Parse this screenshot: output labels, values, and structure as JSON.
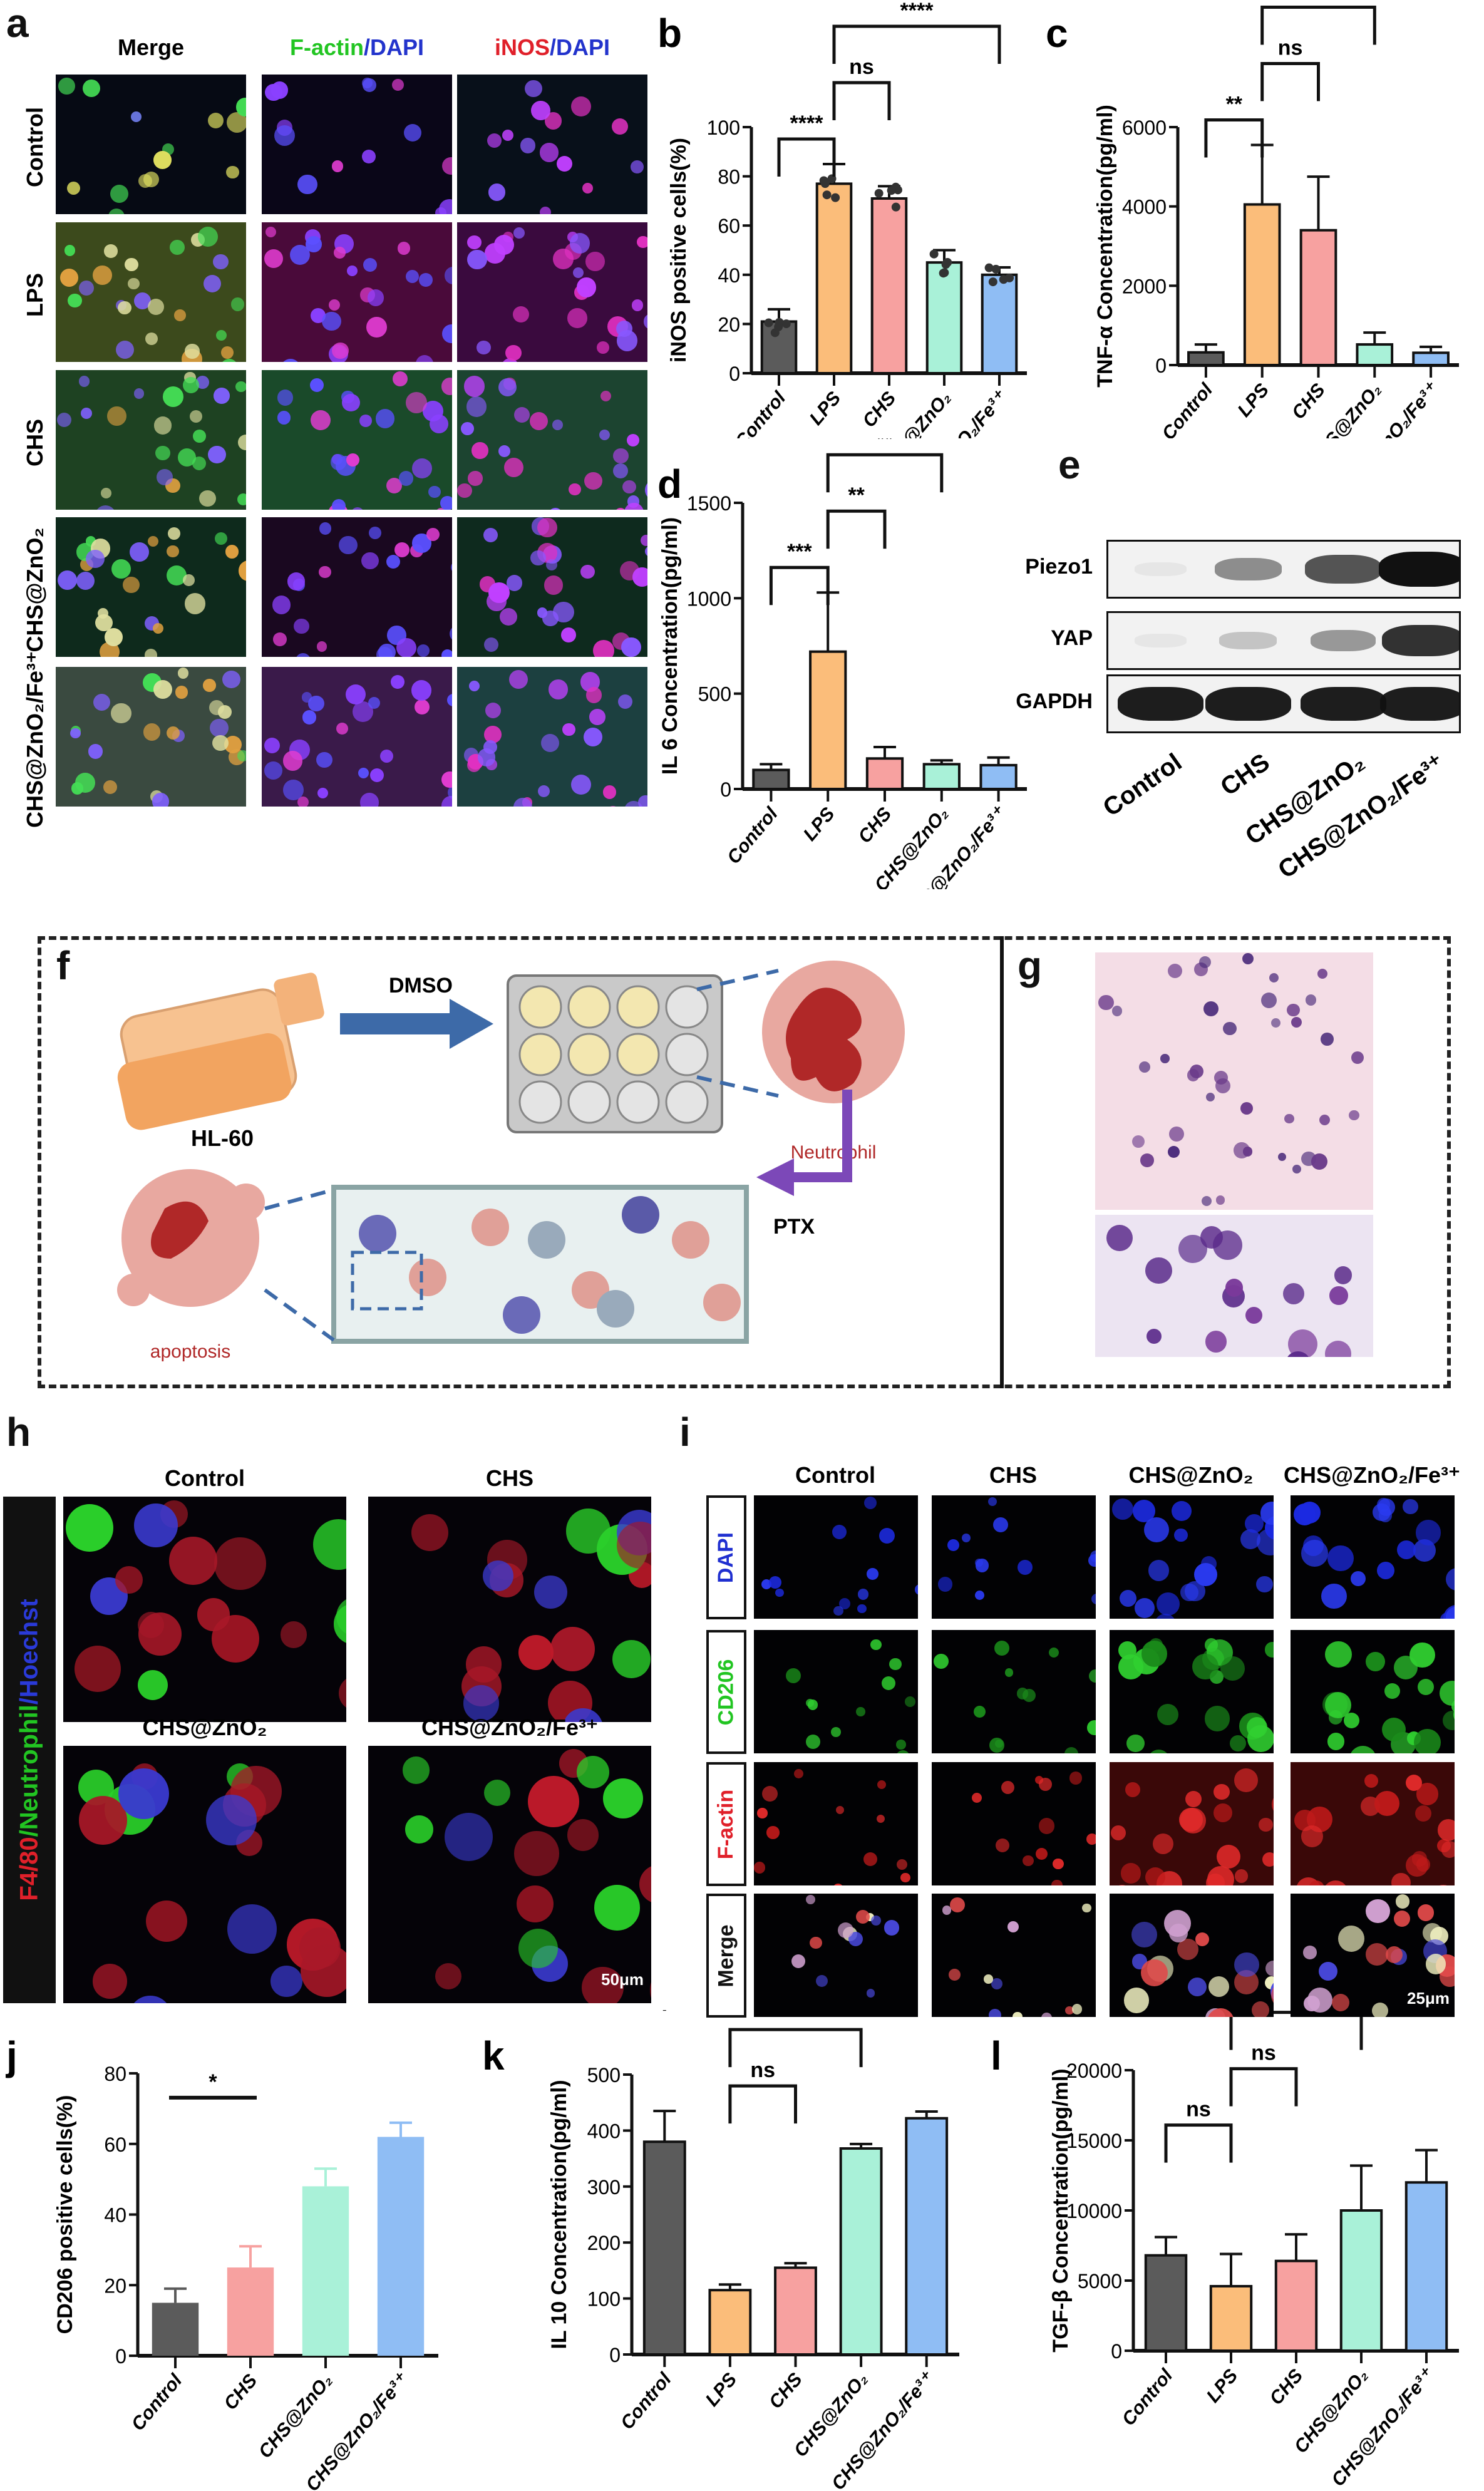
{
  "groups": {
    "control": "Control",
    "lps": "LPS",
    "chs": "CHS",
    "zno2": "CHS@ZnO₂",
    "fe": "CHS@ZnO₂/Fe³⁺"
  },
  "colors": {
    "Control": "#5b5b5b",
    "LPS": "#fbbd7a",
    "CHS": "#f7a1a0",
    "CHS@ZnO₂": "#a9f1d8",
    "CHS@ZnO₂/Fe³⁺": "#8fbdf4"
  },
  "panel_a": {
    "label": "a",
    "columns": [
      {
        "text": "Merge",
        "color": "#111111"
      },
      {
        "text1": "F-actin",
        "text2": "/DAPI",
        "c1": "#22c522",
        "c2": "#2233cc"
      },
      {
        "text1": "iNOS",
        "text2": "/DAPI",
        "c1": "#e0202a",
        "c2": "#2233cc"
      }
    ],
    "rows": [
      "Control",
      "LPS",
      "CHS",
      "CHS@ZnO₂",
      "CHS@ZnO₂/Fe³⁺"
    ]
  },
  "chart_data": [
    {
      "id": "b",
      "label": "b",
      "type": "bar",
      "ylabel": "iNOS positive cells(%)",
      "ylim": [
        0,
        100
      ],
      "yticks": [
        0,
        20,
        40,
        60,
        80,
        100
      ],
      "categories": [
        "Control",
        "LPS",
        "CHS",
        "CHS@ZnO₂",
        "CHS@ZnO₂/Fe³⁺"
      ],
      "values": [
        21,
        77,
        71,
        45,
        40
      ],
      "errors": [
        5,
        8,
        5,
        5,
        3
      ],
      "points": true,
      "significance": [
        {
          "from": 0,
          "to": 1,
          "text": "****"
        },
        {
          "from": 1,
          "to": 2,
          "text": "ns"
        },
        {
          "from": 1,
          "to": 4,
          "text": "****"
        }
      ]
    },
    {
      "id": "c",
      "label": "c",
      "type": "bar",
      "ylabel": "TNF-α Concentration(pg/ml)",
      "ylim": [
        0,
        6000
      ],
      "yticks": [
        0,
        2000,
        4000,
        6000
      ],
      "categories": [
        "Control",
        "LPS",
        "CHS",
        "CHS@ZnO₂",
        "CHS@ZnO₂/Fe³⁺"
      ],
      "values": [
        320,
        4050,
        3400,
        520,
        310
      ],
      "errors": [
        200,
        1500,
        1350,
        300,
        150
      ],
      "significance": [
        {
          "from": 0,
          "to": 1,
          "text": "**"
        },
        {
          "from": 1,
          "to": 2,
          "text": "ns"
        },
        {
          "from": 1,
          "to": 3,
          "text": "**"
        },
        {
          "from": 1,
          "to": 4,
          "text": "**"
        }
      ]
    },
    {
      "id": "d",
      "label": "d",
      "type": "bar",
      "ylabel": "IL 6 Concentration(pg/ml)",
      "ylim": [
        0,
        1500
      ],
      "yticks": [
        0,
        500,
        1000,
        1500
      ],
      "categories": [
        "Control",
        "LPS",
        "CHS",
        "CHS@ZnO₂",
        "CHS@ZnO₂/Fe³⁺"
      ],
      "values": [
        100,
        720,
        160,
        130,
        125
      ],
      "errors": [
        30,
        310,
        60,
        20,
        40
      ],
      "significance": [
        {
          "from": 0,
          "to": 1,
          "text": "***"
        },
        {
          "from": 1,
          "to": 2,
          "text": "**"
        },
        {
          "from": 1,
          "to": 3,
          "text": "**"
        },
        {
          "from": 1,
          "to": 4,
          "text": "**"
        }
      ]
    },
    {
      "id": "j",
      "label": "j",
      "type": "bar",
      "ylabel": "CD206 positive cells(%)",
      "ylim": [
        0,
        80
      ],
      "yticks": [
        0,
        20,
        40,
        60,
        80
      ],
      "categories": [
        "Control",
        "CHS",
        "CHS@ZnO₂",
        "CHS@ZnO₂/Fe³⁺"
      ],
      "values": [
        15,
        25,
        48,
        62
      ],
      "errors": [
        4,
        6,
        5,
        4
      ],
      "flat": true,
      "significance": [
        {
          "from": 0,
          "to": 1,
          "text": "*"
        },
        {
          "from": 0,
          "to": 2,
          "text": "****"
        },
        {
          "from": 0,
          "to": 3,
          "text": "****"
        }
      ]
    },
    {
      "id": "k",
      "label": "k",
      "type": "bar",
      "ylabel": "IL 10 Concentration(pg/ml)",
      "ylim": [
        0,
        500
      ],
      "yticks": [
        0,
        100,
        200,
        300,
        400,
        500
      ],
      "categories": [
        "Control",
        "LPS",
        "CHS",
        "CHS@ZnO₂",
        "CHS@ZnO₂/Fe³⁺"
      ],
      "values": [
        380,
        115,
        155,
        368,
        422
      ],
      "errors": [
        55,
        10,
        8,
        8,
        12
      ],
      "significance": [
        {
          "from": 1,
          "to": 2,
          "text": "ns"
        },
        {
          "from": 1,
          "to": 3,
          "text": "****"
        },
        {
          "from": 0,
          "to": 1,
          "text": "****"
        },
        {
          "from": 1,
          "to": 4,
          "text": "****"
        }
      ]
    },
    {
      "id": "l",
      "label": "l",
      "type": "bar",
      "ylabel": "TGF-β Concentration(pg/ml)",
      "ylim": [
        0,
        20000
      ],
      "yticks": [
        0,
        5000,
        10000,
        15000,
        20000
      ],
      "categories": [
        "Control",
        "LPS",
        "CHS",
        "CHS@ZnO₂",
        "CHS@ZnO₂/Fe³⁺"
      ],
      "values": [
        6800,
        4600,
        6400,
        10000,
        12000
      ],
      "errors": [
        1300,
        2300,
        1900,
        3200,
        2300
      ],
      "significance": [
        {
          "from": 0,
          "to": 1,
          "text": "ns"
        },
        {
          "from": 1,
          "to": 2,
          "text": "ns"
        },
        {
          "from": 1,
          "to": 3,
          "text": "*"
        },
        {
          "from": 1,
          "to": 4,
          "text": "**"
        }
      ]
    }
  ],
  "panel_e": {
    "label": "e",
    "rows": [
      {
        "name": "Piezo1",
        "levels": [
          0.05,
          0.45,
          0.7,
          1.0
        ]
      },
      {
        "name": "YAP",
        "levels": [
          0.05,
          0.2,
          0.4,
          0.85
        ]
      },
      {
        "name": "GAPDH",
        "levels": [
          0.95,
          0.95,
          0.95,
          0.95
        ]
      }
    ],
    "columns": [
      "Control",
      "CHS",
      "CHS@ZnO₂",
      "CHS@ZnO₂/Fe³⁺"
    ]
  },
  "panel_f": {
    "label": "f",
    "cell_line": "HL-60",
    "step1": "DMSO",
    "neutrophil": "Neutrophil",
    "step2": "PTX",
    "apoptosis": "apoptosis"
  },
  "panel_g": {
    "label": "g"
  },
  "panel_h": {
    "label": "h",
    "columns": [
      "Control",
      "CHS",
      "CHS@ZnO₂",
      "CHS@ZnO₂/Fe³⁺"
    ],
    "side1": "F4/80",
    "side2": "/Neutrophil",
    "side3": "/Hoechst",
    "scale": "50μm"
  },
  "panel_i": {
    "label": "i",
    "columns": [
      "Control",
      "CHS",
      "CHS@ZnO₂",
      "CHS@ZnO₂/Fe³⁺"
    ],
    "rows": [
      {
        "name": "DAPI",
        "color": "#1f2fd0"
      },
      {
        "name": "CD206",
        "color": "#22c522"
      },
      {
        "name": "F-actin",
        "color": "#e0202a"
      },
      {
        "name": "Merge",
        "color": "#111111"
      }
    ],
    "scale": "25μm"
  }
}
